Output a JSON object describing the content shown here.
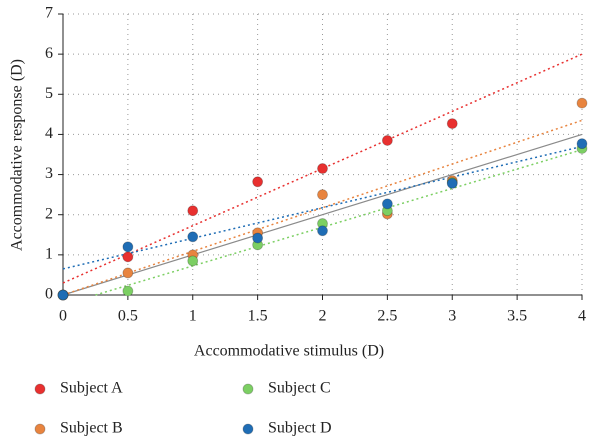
{
  "chart_data": {
    "type": "scatter",
    "x_label": "Accommodative stimulus (D)",
    "y_label": "Accommodative response (D)",
    "xlim": [
      0,
      4
    ],
    "ylim": [
      0,
      7
    ],
    "xticks": [
      0,
      0.5,
      1,
      1.5,
      2,
      2.5,
      3,
      3.5,
      4
    ],
    "yticks": [
      0,
      1,
      2,
      3,
      4,
      5,
      6,
      7
    ],
    "grid": true,
    "legend_position": "bottom",
    "reference_line": {
      "x": [
        0,
        4
      ],
      "y": [
        0,
        4
      ],
      "color": "#8a8a8a"
    },
    "series": [
      {
        "name": "Subject A",
        "color": "#e8302f",
        "x": [
          0,
          0.5,
          1,
          1.5,
          2,
          2.5,
          3
        ],
        "values": [
          0,
          0.95,
          2.1,
          2.82,
          3.15,
          3.85,
          4.27
        ],
        "trendline": {
          "x": [
            0,
            4
          ],
          "y": [
            0.3,
            6.0
          ]
        }
      },
      {
        "name": "Subject B",
        "color": "#e8843f",
        "x": [
          0,
          0.5,
          1,
          1.5,
          2,
          2.5,
          3,
          4
        ],
        "values": [
          0,
          0.55,
          1.0,
          1.55,
          2.5,
          2.02,
          2.85,
          4.78
        ],
        "trendline": {
          "x": [
            0,
            4
          ],
          "y": [
            0,
            4.35
          ]
        }
      },
      {
        "name": "Subject C",
        "color": "#7ccf63",
        "x": [
          0,
          0.5,
          1,
          1.5,
          2,
          2.5,
          3,
          4
        ],
        "values": [
          0,
          0.1,
          0.85,
          1.25,
          1.78,
          2.1,
          2.8,
          3.65
        ],
        "trendline": {
          "x": [
            0.25,
            4
          ],
          "y": [
            0,
            3.62
          ]
        }
      },
      {
        "name": "Subject D",
        "color": "#1f6db5",
        "x": [
          0,
          0.5,
          1,
          1.5,
          2,
          2.5,
          3,
          4
        ],
        "values": [
          0,
          1.2,
          1.45,
          1.42,
          1.6,
          2.27,
          2.78,
          3.77
        ],
        "trendline": {
          "x": [
            0,
            4
          ],
          "y": [
            0.65,
            3.7
          ]
        }
      }
    ]
  }
}
